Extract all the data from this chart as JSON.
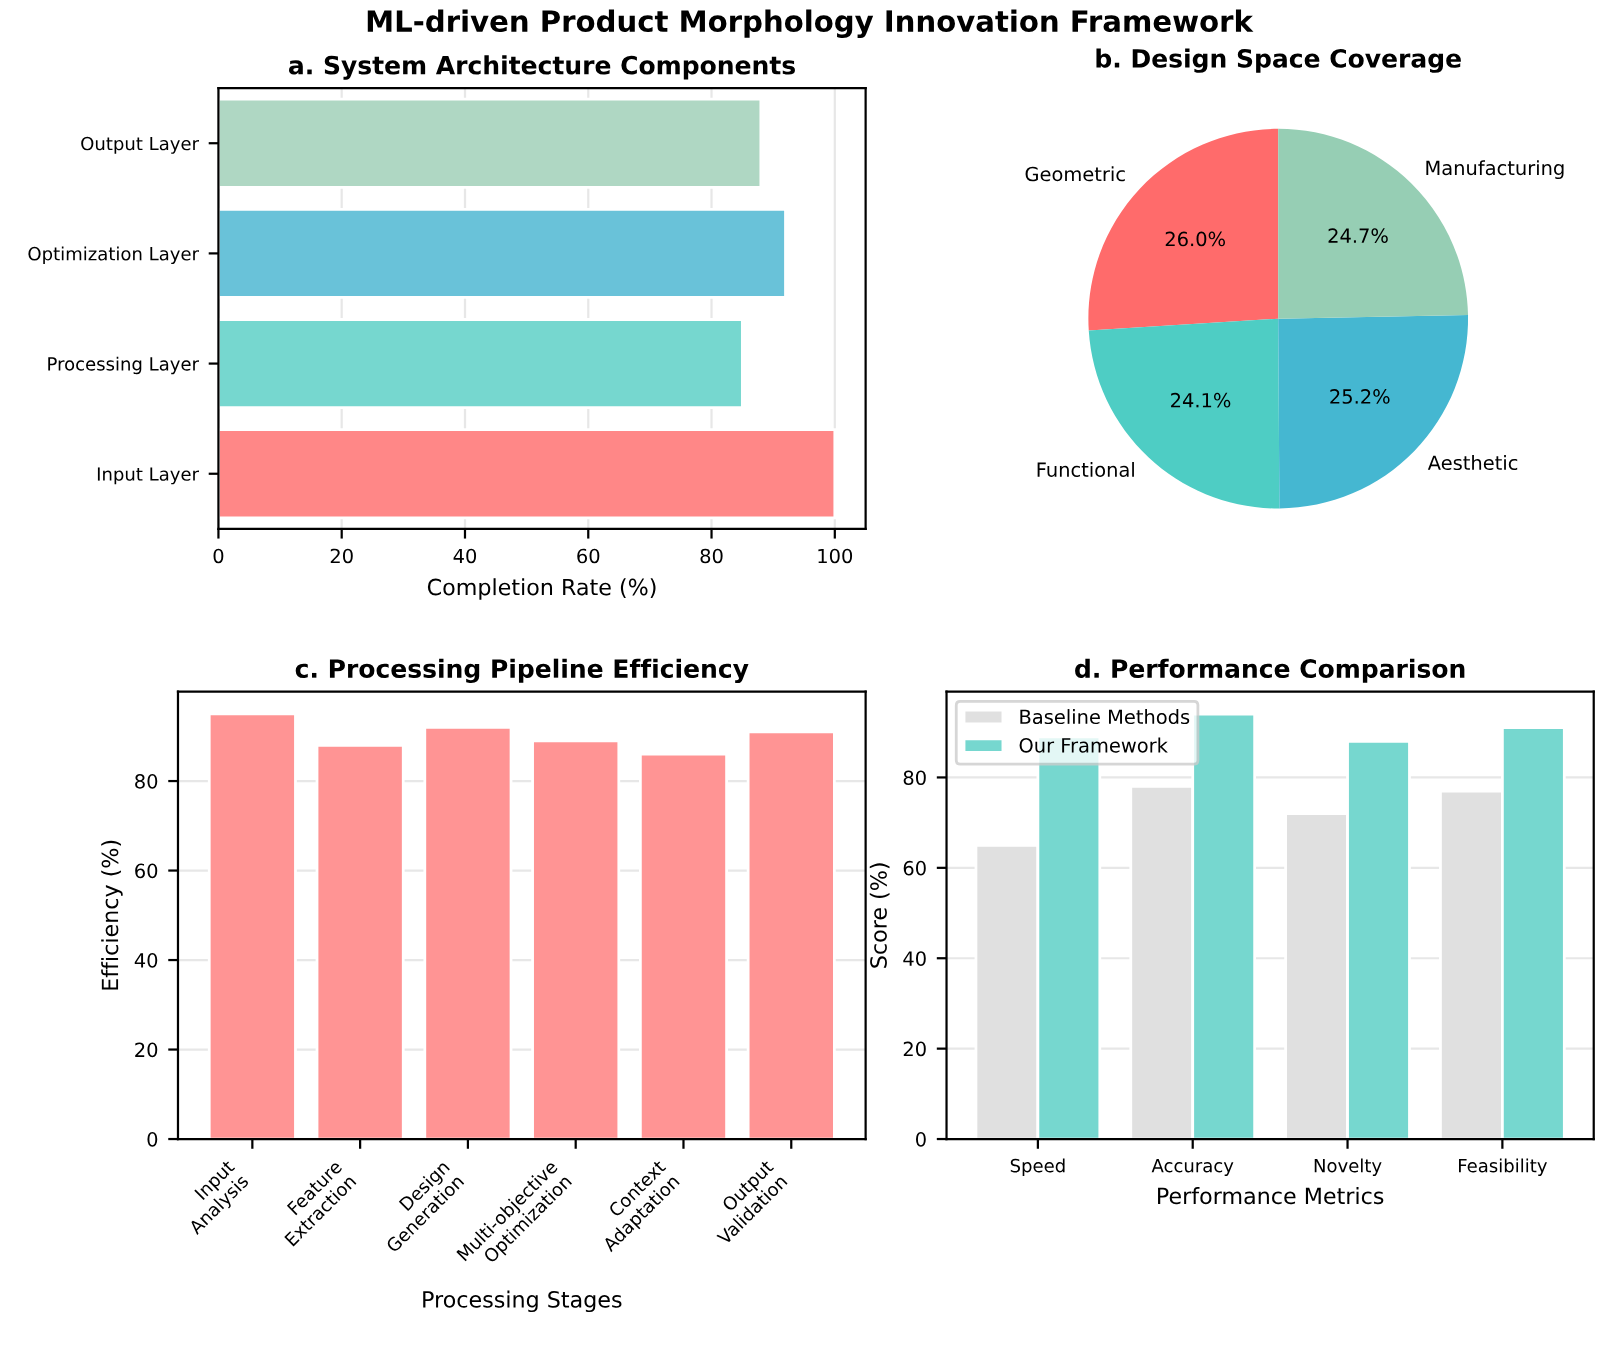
{
  "chart_data": [
    {
      "type": "bar",
      "title": "a. System Architecture Components",
      "annotations": [
        "ML-driven Product Morphology Innovation Framework"
      ],
      "orientation": "horizontal",
      "xlabel": "Completion Rate (%)",
      "categories": [
        "Output Layer",
        "Optimization Layer",
        "Processing Layer",
        "Input Layer"
      ],
      "values": [
        88,
        92,
        85,
        100
      ],
      "colors": [
        "#afd7c3",
        "#69c2d9",
        "#76d7cf",
        "#ff8787"
      ],
      "xlim": [
        0,
        105
      ],
      "xticks": [
        0,
        20,
        40,
        60,
        80,
        100
      ],
      "grid": "x"
    },
    {
      "type": "pie",
      "title": "b. Design Space Coverage",
      "categories": [
        "Geometric",
        "Functional",
        "Aesthetic",
        "Manufacturing"
      ],
      "values": [
        26.0,
        24.1,
        25.2,
        24.7
      ],
      "colors": [
        "#ff6b6b",
        "#4ecdc4",
        "#45b7d1",
        "#96ceb4"
      ],
      "value_labels": [
        "26.0%",
        "24.1%",
        "25.2%",
        "24.7%"
      ]
    },
    {
      "type": "bar",
      "title": "c. Processing Pipeline Efficiency",
      "xlabel": "Processing Stages",
      "ylabel": "Efficiency (%)",
      "categories": [
        "Input\nAnalysis",
        "Feature\nExtraction",
        "Design\nGeneration",
        "Multi-objective\nOptimization",
        "Context\nAdaptation",
        "Output\nValidation"
      ],
      "values": [
        95,
        88,
        92,
        89,
        86,
        91
      ],
      "color": "#ff9494",
      "ylim": [
        0,
        100
      ],
      "yticks": [
        0,
        20,
        40,
        60,
        80
      ],
      "grid": "y"
    },
    {
      "type": "bar",
      "title": "d. Performance Comparison",
      "xlabel": "Performance Metrics",
      "ylabel": "Score (%)",
      "categories": [
        "Speed",
        "Accuracy",
        "Novelty",
        "Feasibility"
      ],
      "series": [
        {
          "name": "Baseline Methods",
          "color": "#e0e0e0",
          "values": [
            65,
            78,
            72,
            77
          ]
        },
        {
          "name": "Our Framework",
          "color": "#76d7cf",
          "values": [
            89,
            94,
            88,
            91
          ]
        }
      ],
      "ylim": [
        0,
        99
      ],
      "yticks": [
        0,
        20,
        40,
        60,
        80
      ],
      "grid": "y",
      "legend": "top left"
    }
  ]
}
